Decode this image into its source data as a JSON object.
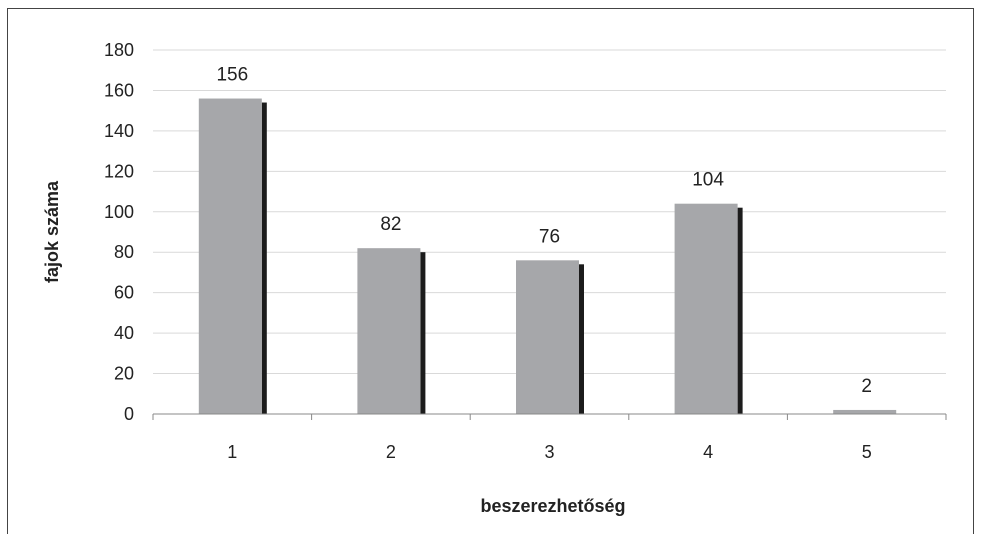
{
  "chart_data": {
    "type": "bar",
    "categories": [
      "1",
      "2",
      "3",
      "4",
      "5"
    ],
    "values": [
      156,
      82,
      76,
      104,
      2
    ],
    "data_labels": [
      "156",
      "82",
      "76",
      "104",
      "2"
    ],
    "title": "",
    "xlabel": "beszerezhetőség",
    "ylabel": "fajok száma",
    "ylim": [
      0,
      180
    ],
    "yticks": [
      "0",
      "20",
      "40",
      "60",
      "80",
      "100",
      "120",
      "140",
      "160",
      "180"
    ],
    "grid": true,
    "legend": "none",
    "colors": {
      "bar": "#a6a7aa",
      "shadow": "#1c1c1c",
      "grid": "#d9d9d9",
      "axis": "#888888"
    }
  }
}
